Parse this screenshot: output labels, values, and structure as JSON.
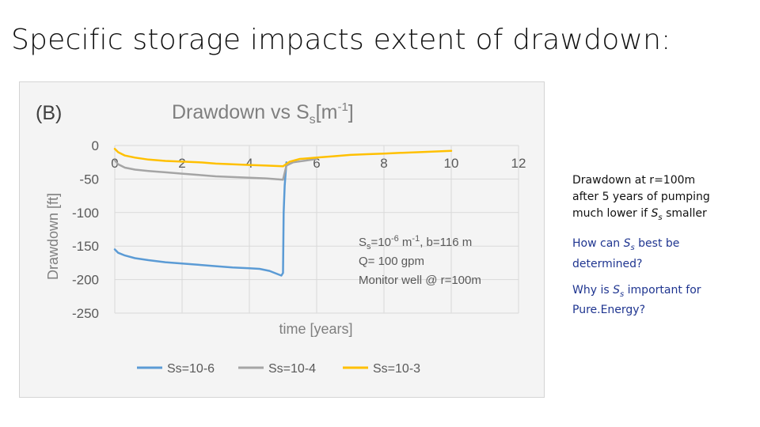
{
  "slide": {
    "title": "Specific storage impacts extent of drawdown:"
  },
  "chart_data": {
    "type": "line",
    "panel_label": "(B)",
    "title": "Drawdown vs Ss[m-1]",
    "title_main": "Drawdown vs S",
    "title_sub": "s",
    "title_bracket": "[m",
    "title_sup": "-1",
    "title_close": "]",
    "xlabel": "time [years]",
    "ylabel": "Drawdown [ft]",
    "xlim": [
      0,
      12
    ],
    "ylim": [
      -250,
      0
    ],
    "x_ticks": [
      "0",
      "2",
      "4",
      "6",
      "8",
      "10",
      "12"
    ],
    "y_ticks": [
      "0",
      "-50",
      "-100",
      "-150",
      "-200",
      "-250"
    ],
    "grid": true,
    "legend_position": "bottom",
    "annotation": {
      "line1_a": "S",
      "line1_sub": "s",
      "line1_b": "=10",
      "line1_sup": "-6",
      "line1_c": " m",
      "line1_sup2": "-1",
      "line1_d": ", b=116 m",
      "line2": "Q= 100 gpm",
      "line3": "Monitor well @ r=100m"
    },
    "series": [
      {
        "name": "Ss=10-6",
        "color": "#5b9bd5",
        "x": [
          0,
          0.1,
          0.3,
          0.6,
          1,
          1.5,
          2,
          2.5,
          3,
          3.5,
          4,
          4.3,
          4.6,
          4.8,
          4.95,
          5.0,
          5.02,
          5.05,
          5.1
        ],
        "y": [
          -155,
          -160,
          -164,
          -168,
          -171,
          -174,
          -176,
          -178,
          -180,
          -182,
          -183,
          -184,
          -187,
          -191,
          -194,
          -190,
          -100,
          -60,
          -25
        ]
      },
      {
        "name": "Ss=10-4",
        "color": "#a5a5a5",
        "x": [
          0,
          0.1,
          0.3,
          0.6,
          1,
          1.5,
          2,
          2.5,
          3,
          3.5,
          4,
          4.5,
          5.0,
          5.1,
          5.3,
          5.6,
          6
        ],
        "y": [
          -22,
          -28,
          -33,
          -36,
          -38,
          -40,
          -42,
          -44,
          -46,
          -47,
          -48,
          -49,
          -51,
          -30,
          -25,
          -23,
          -20
        ]
      },
      {
        "name": "Ss=10-3",
        "color": "#ffc000",
        "x": [
          0,
          0.1,
          0.3,
          0.6,
          1,
          1.5,
          2,
          2.5,
          3,
          3.5,
          4,
          4.5,
          5.0,
          5.2,
          5.5,
          6,
          6.5,
          7,
          7.5,
          8,
          8.5,
          9,
          9.5,
          10
        ],
        "y": [
          -5,
          -10,
          -15,
          -18,
          -21,
          -23,
          -24,
          -25,
          -27,
          -28,
          -29,
          -30,
          -31,
          -24,
          -20,
          -18,
          -16,
          -14,
          -13,
          -12,
          -11,
          -10,
          -9,
          -8
        ]
      }
    ]
  },
  "notes": {
    "note1": {
      "line1": "Drawdown at r=100m",
      "line2": "after 5 years of pumping",
      "line3_pre": "much lower if ",
      "line3_S": "S",
      "line3_sub": "s",
      "line3_post": " smaller"
    },
    "note2": {
      "pre": "How can ",
      "S": "S",
      "sub": "s",
      "post1": " best be",
      "line2": "determined?"
    },
    "note3": {
      "pre": "Why is ",
      "S": "S",
      "sub": "s",
      "post1": " important for",
      "line2": "Pure.Energy?"
    }
  }
}
